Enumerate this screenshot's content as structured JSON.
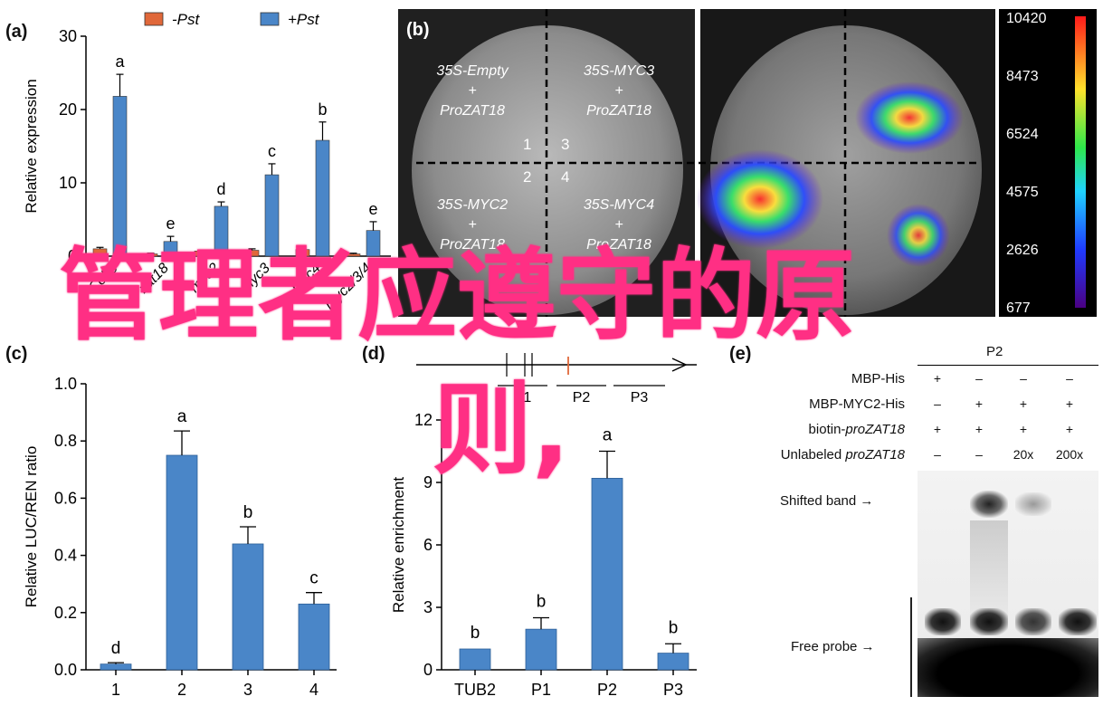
{
  "overlay": {
    "line1": "管理者应遵守的原",
    "line2": "则,"
  },
  "panel_a": {
    "label": "(a)",
    "legend": [
      "-Pst",
      "+Pst"
    ],
    "ylabel": "Relative expression",
    "yticks": [
      "0",
      "10",
      "20",
      "30"
    ],
    "xticks": [
      "Col-0",
      "zat18",
      "myc2",
      "myc3",
      "myc4",
      "myc2/3/4"
    ],
    "letters": [
      "a",
      "e",
      "d",
      "c",
      "b",
      "e"
    ]
  },
  "panel_b": {
    "label": "(b)",
    "quadrants": [
      {
        "l1": "35S-Empty",
        "l2": "+",
        "l3": "ProZAT18"
      },
      {
        "l1": "35S-MYC3",
        "l2": "+",
        "l3": "ProZAT18"
      },
      {
        "l1": "35S-MYC2",
        "l2": "+",
        "l3": "ProZAT18"
      },
      {
        "l1": "35S-MYC4",
        "l2": "+",
        "l3": "ProZAT18"
      }
    ],
    "numbers": [
      "1",
      "3",
      "2",
      "4"
    ],
    "scale": [
      "10420",
      "8473",
      "6524",
      "4575",
      "2626",
      "677"
    ]
  },
  "panel_c": {
    "label": "(c)",
    "ylabel": "Relative LUC/REN ratio",
    "yticks": [
      "0.0",
      "0.2",
      "0.4",
      "0.6",
      "0.8",
      "1.0"
    ],
    "xticks": [
      "1",
      "2",
      "3",
      "4"
    ],
    "letters": [
      "d",
      "a",
      "b",
      "c"
    ]
  },
  "panel_d": {
    "label": "(d)",
    "promoters": [
      "P1",
      "P2",
      "P3"
    ],
    "ylabel": "Relative enrichment",
    "yticks": [
      "0",
      "3",
      "6",
      "9",
      "12"
    ],
    "xticks": [
      "TUB2",
      "P1",
      "P2",
      "P3"
    ],
    "letters": [
      "b",
      "b",
      "a",
      "b"
    ]
  },
  "panel_e": {
    "label": "(e)",
    "top_label": "P2",
    "rows": [
      {
        "label": "MBP-His",
        "vals": [
          "+",
          "–",
          "–",
          "–"
        ]
      },
      {
        "label": "MBP-MYC2-His",
        "vals": [
          "–",
          "+",
          "+",
          "+"
        ]
      },
      {
        "label": "biotin-proZAT18",
        "vals": [
          "+",
          "+",
          "+",
          "+"
        ]
      },
      {
        "label": "Unlabeled proZAT18",
        "vals": [
          "–",
          "–",
          "20x",
          "200x"
        ]
      }
    ],
    "shifted_band": "Shifted band",
    "free_probe": "Free probe"
  },
  "chart_data": [
    {
      "type": "bar",
      "categories": [
        "Col-0",
        "zat18",
        "myc2",
        "myc3",
        "myc4",
        "myc2/3/4"
      ],
      "series": [
        {
          "name": "-Pst",
          "values": [
            1.0,
            0.3,
            0.7,
            0.8,
            0.9,
            0.3
          ],
          "errors": [
            0.2,
            0.1,
            0.15,
            0.2,
            0.2,
            0.1
          ]
        },
        {
          "name": "+Pst",
          "values": [
            21.8,
            2.0,
            6.8,
            11.1,
            15.8,
            3.5
          ],
          "errors": [
            3.0,
            0.7,
            0.6,
            1.5,
            2.5,
            1.2
          ]
        }
      ],
      "letters": [
        "a",
        "e",
        "d",
        "c",
        "b",
        "e"
      ],
      "ylabel": "Relative expression",
      "ylim": [
        0,
        30
      ],
      "legend": "top"
    },
    {
      "type": "bar",
      "categories": [
        "1",
        "2",
        "3",
        "4"
      ],
      "values": [
        0.02,
        0.75,
        0.44,
        0.23
      ],
      "errors": [
        0.005,
        0.085,
        0.06,
        0.04
      ],
      "letters": [
        "d",
        "a",
        "b",
        "c"
      ],
      "ylabel": "Relative LUC/REN ratio",
      "ylim": [
        0,
        1.0
      ]
    },
    {
      "type": "bar",
      "categories": [
        "TUB2",
        "P1",
        "P2",
        "P3"
      ],
      "values": [
        1.0,
        1.95,
        9.2,
        0.8
      ],
      "errors": [
        0,
        0.55,
        1.3,
        0.45
      ],
      "letters": [
        "b",
        "b",
        "a",
        "b"
      ],
      "ylabel": "Relative enrichment",
      "ylim": [
        0,
        12
      ]
    }
  ],
  "colors": {
    "neg": "#e0683a",
    "pos": "#4a86c8",
    "overlay": "#ff2f84",
    "bar": "#4a86c8"
  }
}
